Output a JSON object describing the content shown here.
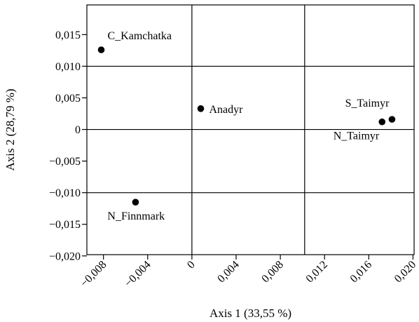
{
  "chart_data": {
    "type": "scatter",
    "title": "",
    "xlabel": "Axis 1 (33,55 %)",
    "ylabel": "Axis 2 (28,79 %)",
    "xlim": [
      -0.0095,
      0.0201
    ],
    "ylim": [
      -0.0198,
      0.0197
    ],
    "grid": true,
    "grid_x": [
      0,
      0.0102
    ],
    "grid_y": [
      0.01,
      0,
      -0.01
    ],
    "x_ticks": [
      {
        "v": -0.008,
        "label": "−0,008"
      },
      {
        "v": -0.004,
        "label": "−0,004"
      },
      {
        "v": 0,
        "label": "0"
      },
      {
        "v": 0.004,
        "label": "0,004"
      },
      {
        "v": 0.008,
        "label": "0,008"
      },
      {
        "v": 0.012,
        "label": "0,012"
      },
      {
        "v": 0.016,
        "label": "0,016"
      },
      {
        "v": 0.02,
        "label": "0,020"
      }
    ],
    "y_ticks": [
      {
        "v": 0.015,
        "label": "0,015"
      },
      {
        "v": 0.01,
        "label": "0,010"
      },
      {
        "v": 0.005,
        "label": "0,005"
      },
      {
        "v": 0,
        "label": "0"
      },
      {
        "v": -0.005,
        "label": "−0,005"
      },
      {
        "v": -0.01,
        "label": "−0,010"
      },
      {
        "v": -0.015,
        "label": "−0,015"
      },
      {
        "v": -0.02,
        "label": "−0,020"
      }
    ],
    "points": [
      {
        "name": "C_Kamchatka",
        "x": -0.0082,
        "y": 0.0126,
        "label_pos": "upper-right"
      },
      {
        "name": "Anadyr",
        "x": 0.0008,
        "y": 0.0033,
        "label_pos": "right"
      },
      {
        "name": "S_Taimyr",
        "x": 0.0181,
        "y": 0.0016,
        "label_pos": "above-left"
      },
      {
        "name": "N_Taimyr",
        "x": 0.0172,
        "y": 0.0012,
        "label_pos": "below-left"
      },
      {
        "name": "N_Finnmark",
        "x": -0.0051,
        "y": -0.0115,
        "label_pos": "below"
      }
    ]
  }
}
